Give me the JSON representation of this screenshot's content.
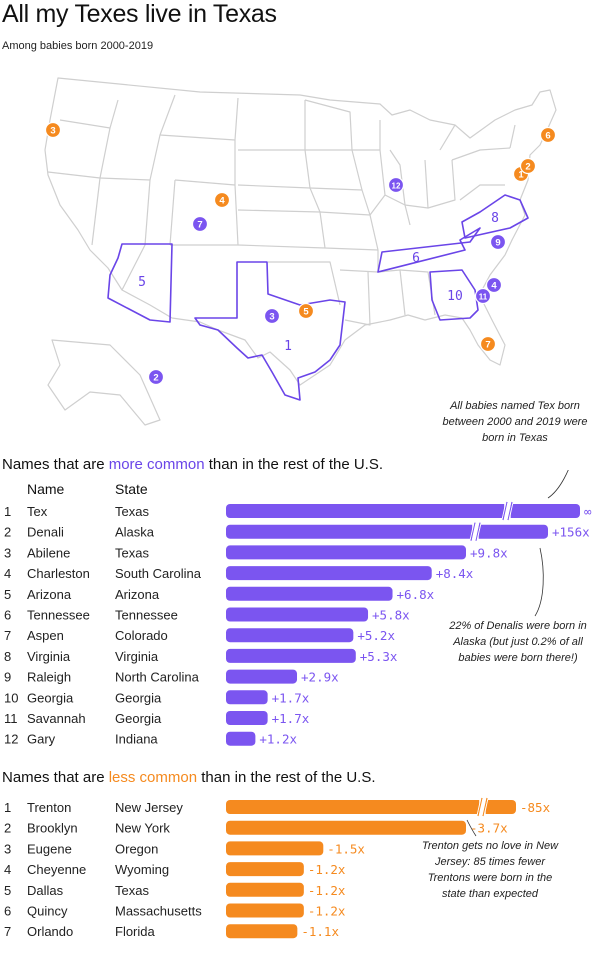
{
  "title": "All my Texes live in Texas",
  "subtitle": "Among babies born 2000-2019",
  "colors": {
    "more": "#7b55f0",
    "less": "#f58a1f",
    "border": "#cfcfcf",
    "outline": "#6a45e8"
  },
  "map": {
    "markers": [
      {
        "label": "1",
        "group": "less"
      },
      {
        "label": "2",
        "group": "less"
      },
      {
        "label": "3",
        "group": "less"
      },
      {
        "label": "4",
        "group": "less"
      },
      {
        "label": "5",
        "group": "less"
      },
      {
        "label": "6",
        "group": "less"
      },
      {
        "label": "7",
        "group": "less"
      },
      {
        "label": "2",
        "group": "more"
      },
      {
        "label": "3",
        "group": "more"
      },
      {
        "label": "4",
        "group": "more"
      },
      {
        "label": "7",
        "group": "more"
      },
      {
        "label": "9",
        "group": "more"
      },
      {
        "label": "11",
        "group": "more"
      },
      {
        "label": "12",
        "group": "more"
      }
    ],
    "region_labels": [
      "1",
      "5",
      "6",
      "8",
      "10"
    ]
  },
  "annotations": {
    "tex": "All babies named Tex born between 2000 and 2019 were born in Texas",
    "denali": "22% of Denalis were born in Alaska (but just 0.2% of all babies were born there!)",
    "trenton": "Trenton gets no love in New Jersey: 85 times fewer Trentons were born in the state than expected"
  },
  "sections": {
    "more_prefix": "Names that are ",
    "more_highlight": "more common",
    "more_suffix": " than in the rest of the U.S.",
    "less_prefix": "Names that are ",
    "less_highlight": "less common",
    "less_suffix": " than in the rest of the U.S."
  },
  "chart_data": [
    {
      "type": "bar",
      "title": "Names that are more common than in the rest of the U.S.",
      "columns": [
        "Name",
        "State"
      ],
      "rows": [
        {
          "rank": 1,
          "name": "Tex",
          "state": "Texas",
          "label": "∞",
          "value": null,
          "broken": true
        },
        {
          "rank": 2,
          "name": "Denali",
          "state": "Alaska",
          "label": "+156x",
          "value": 156,
          "broken": true
        },
        {
          "rank": 3,
          "name": "Abilene",
          "state": "Texas",
          "label": "+9.8x",
          "value": 9.8
        },
        {
          "rank": 4,
          "name": "Charleston",
          "state": "South Carolina",
          "label": "+8.4x",
          "value": 8.4
        },
        {
          "rank": 5,
          "name": "Arizona",
          "state": "Arizona",
          "label": "+6.8x",
          "value": 6.8
        },
        {
          "rank": 6,
          "name": "Tennessee",
          "state": "Tennessee",
          "label": "+5.8x",
          "value": 5.8
        },
        {
          "rank": 7,
          "name": "Aspen",
          "state": "Colorado",
          "label": "+5.2x",
          "value": 5.2
        },
        {
          "rank": 8,
          "name": "Virginia",
          "state": "Virginia",
          "label": "+5.3x",
          "value": 5.3
        },
        {
          "rank": 9,
          "name": "Raleigh",
          "state": "North Carolina",
          "label": "+2.9x",
          "value": 2.9
        },
        {
          "rank": 10,
          "name": "Georgia",
          "state": "Georgia",
          "label": "+1.7x",
          "value": 1.7
        },
        {
          "rank": 11,
          "name": "Savannah",
          "state": "Georgia",
          "label": "+1.7x",
          "value": 1.7
        },
        {
          "rank": 12,
          "name": "Gary",
          "state": "Indiana",
          "label": "+1.2x",
          "value": 1.2
        }
      ]
    },
    {
      "type": "bar",
      "title": "Names that are less common than in the rest of the U.S.",
      "rows": [
        {
          "rank": 1,
          "name": "Trenton",
          "state": "New Jersey",
          "label": "-85x",
          "value": 85,
          "broken": true
        },
        {
          "rank": 2,
          "name": "Brooklyn",
          "state": "New York",
          "label": "-3.7x",
          "value": 3.7
        },
        {
          "rank": 3,
          "name": "Eugene",
          "state": "Oregon",
          "label": "-1.5x",
          "value": 1.5
        },
        {
          "rank": 4,
          "name": "Cheyenne",
          "state": "Wyoming",
          "label": "-1.2x",
          "value": 1.2
        },
        {
          "rank": 5,
          "name": "Dallas",
          "state": "Texas",
          "label": "-1.2x",
          "value": 1.2
        },
        {
          "rank": 6,
          "name": "Quincy",
          "state": "Massachusetts",
          "label": "-1.2x",
          "value": 1.2
        },
        {
          "rank": 7,
          "name": "Orlando",
          "state": "Florida",
          "label": "-1.1x",
          "value": 1.1
        }
      ]
    }
  ]
}
